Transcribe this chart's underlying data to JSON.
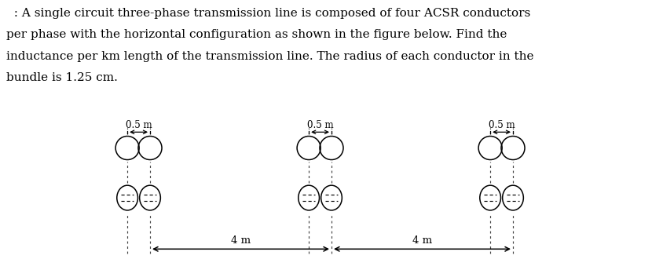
{
  "text_lines": [
    "  : A single circuit three-phase transmission line is composed of four ACSR conductors",
    "per phase with the horizontal configuration as shown in the figure below. Find the",
    "inductance per km length of the transmission line. The radius of each conductor in the",
    "bundle is 1.25 cm."
  ],
  "background_color": "#ffffff",
  "text_color": "#000000",
  "text_fontsize": 11.0,
  "figure_width": 8.44,
  "figure_height": 3.3,
  "dpi": 100,
  "label_05m": "0.5 m",
  "label_4m": "4 m",
  "dashed_line_color": "#444444"
}
